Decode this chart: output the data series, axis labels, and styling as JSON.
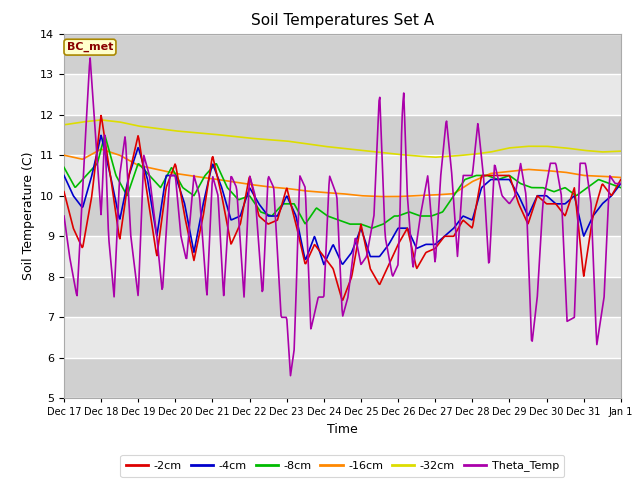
{
  "title": "Soil Temperatures Set A",
  "xlabel": "Time",
  "ylabel": "Soil Temperature (C)",
  "annotation": "BC_met",
  "ylim": [
    5.0,
    14.0
  ],
  "yticks": [
    5.0,
    6.0,
    7.0,
    8.0,
    9.0,
    10.0,
    11.0,
    12.0,
    13.0,
    14.0
  ],
  "xtick_labels": [
    "Dec 17",
    "Dec 18",
    "Dec 19",
    "Dec 20",
    "Dec 21",
    "Dec 22",
    "Dec 23",
    "Dec 24",
    "Dec 25",
    "Dec 26",
    "Dec 27",
    "Dec 28",
    "Dec 29",
    "Dec 30",
    "Dec 31",
    "Jan 1"
  ],
  "series_colors": {
    "-2cm": "#dd0000",
    "-4cm": "#0000cc",
    "-8cm": "#00bb00",
    "-16cm": "#ff8800",
    "-32cm": "#dddd00",
    "Theta_Temp": "#aa00aa"
  },
  "fig_bg": "#ffffff",
  "plot_bg": "#e8e8e8",
  "grid_color": "#ffffff",
  "title_fontsize": 11,
  "axis_label_fontsize": 9,
  "tick_fontsize": 8,
  "legend_fontsize": 8,
  "annot_fontsize": 8,
  "linewidth": 1.2
}
